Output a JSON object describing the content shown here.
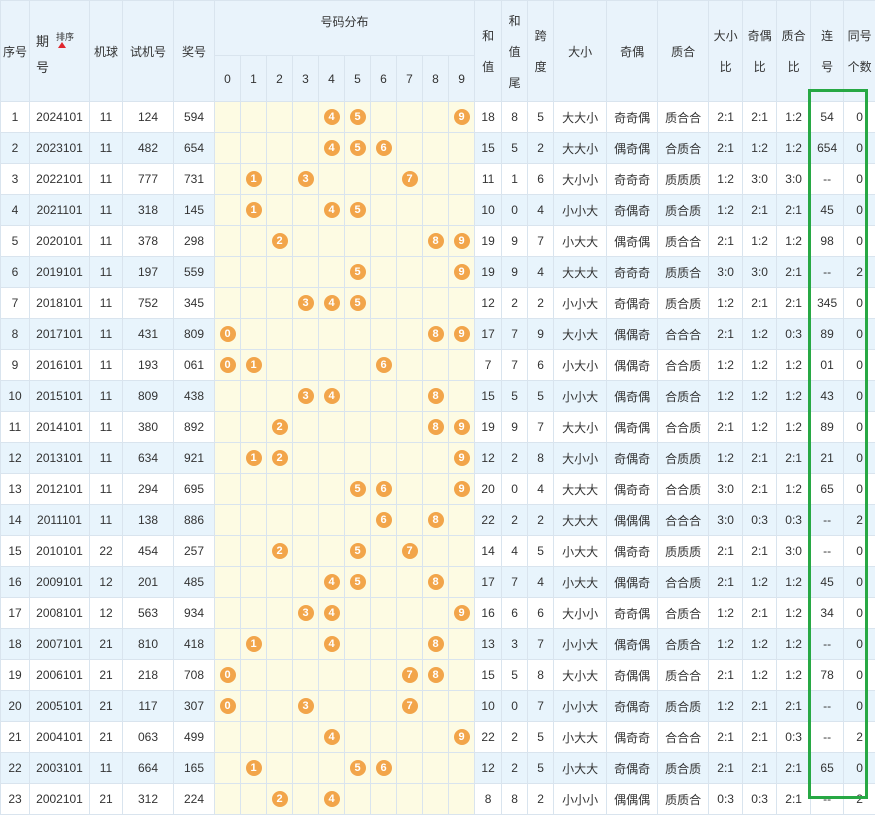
{
  "header": {
    "seq": "序号",
    "period_a": "期",
    "period_b": "号",
    "sort": "排序",
    "machine": "机球",
    "test": "试机号",
    "prize": "奖号",
    "dist": "号码分布",
    "sum_a": "和",
    "sum_b": "值",
    "sumtail_a": "和",
    "sumtail_b": "值",
    "sumtail_c": "尾",
    "span_a": "跨",
    "span_b": "度",
    "bigsmall": "大小",
    "oddeven": "奇偶",
    "primecomp": "质合",
    "bsratio_a": "大小",
    "bsratio_b": "比",
    "oeratio_a": "奇偶",
    "oeratio_b": "比",
    "pcratio_a": "质合",
    "pcratio_b": "比",
    "consec_a": "连",
    "consec_b": "号",
    "same_a": "同号",
    "same_b": "个数",
    "digits": [
      "0",
      "1",
      "2",
      "3",
      "4",
      "5",
      "6",
      "7",
      "8",
      "9"
    ]
  },
  "rows": [
    {
      "seq": "1",
      "period": "2024101",
      "machine": "11",
      "test": "124",
      "prize": "594",
      "balls": [
        "4",
        "5",
        "9"
      ],
      "sum": "18",
      "tail": "8",
      "span": "5",
      "bs": "大大小",
      "oe": "奇奇偶",
      "pc": "质合合",
      "bsr": "2:1",
      "oer": "2:1",
      "pcr": "1:2",
      "consec": "54",
      "same": "0"
    },
    {
      "seq": "2",
      "period": "2023101",
      "machine": "11",
      "test": "482",
      "prize": "654",
      "balls": [
        "4",
        "5",
        "6"
      ],
      "sum": "15",
      "tail": "5",
      "span": "2",
      "bs": "大大小",
      "oe": "偶奇偶",
      "pc": "合质合",
      "bsr": "2:1",
      "oer": "1:2",
      "pcr": "1:2",
      "consec": "654",
      "same": "0"
    },
    {
      "seq": "3",
      "period": "2022101",
      "machine": "11",
      "test": "777",
      "prize": "731",
      "balls": [
        "1",
        "3",
        "7"
      ],
      "sum": "11",
      "tail": "1",
      "span": "6",
      "bs": "大小小",
      "oe": "奇奇奇",
      "pc": "质质质",
      "bsr": "1:2",
      "oer": "3:0",
      "pcr": "3:0",
      "consec": "--",
      "same": "0"
    },
    {
      "seq": "4",
      "period": "2021101",
      "machine": "11",
      "test": "318",
      "prize": "145",
      "balls": [
        "1",
        "4",
        "5"
      ],
      "sum": "10",
      "tail": "0",
      "span": "4",
      "bs": "小小大",
      "oe": "奇偶奇",
      "pc": "质合质",
      "bsr": "1:2",
      "oer": "2:1",
      "pcr": "2:1",
      "consec": "45",
      "same": "0"
    },
    {
      "seq": "5",
      "period": "2020101",
      "machine": "11",
      "test": "378",
      "prize": "298",
      "balls": [
        "2",
        "8",
        "9"
      ],
      "sum": "19",
      "tail": "9",
      "span": "7",
      "bs": "小大大",
      "oe": "偶奇偶",
      "pc": "质合合",
      "bsr": "2:1",
      "oer": "1:2",
      "pcr": "1:2",
      "consec": "98",
      "same": "0"
    },
    {
      "seq": "6",
      "period": "2019101",
      "machine": "11",
      "test": "197",
      "prize": "559",
      "balls": [
        "5",
        "9"
      ],
      "sum": "19",
      "tail": "9",
      "span": "4",
      "bs": "大大大",
      "oe": "奇奇奇",
      "pc": "质质合",
      "bsr": "3:0",
      "oer": "3:0",
      "pcr": "2:1",
      "consec": "--",
      "same": "2"
    },
    {
      "seq": "7",
      "period": "2018101",
      "machine": "11",
      "test": "752",
      "prize": "345",
      "balls": [
        "3",
        "4",
        "5"
      ],
      "sum": "12",
      "tail": "2",
      "span": "2",
      "bs": "小小大",
      "oe": "奇偶奇",
      "pc": "质合质",
      "bsr": "1:2",
      "oer": "2:1",
      "pcr": "2:1",
      "consec": "345",
      "same": "0"
    },
    {
      "seq": "8",
      "period": "2017101",
      "machine": "11",
      "test": "431",
      "prize": "809",
      "balls": [
        "0",
        "8",
        "9"
      ],
      "sum": "17",
      "tail": "7",
      "span": "9",
      "bs": "大小大",
      "oe": "偶偶奇",
      "pc": "合合合",
      "bsr": "2:1",
      "oer": "1:2",
      "pcr": "0:3",
      "consec": "89",
      "same": "0"
    },
    {
      "seq": "9",
      "period": "2016101",
      "machine": "11",
      "test": "193",
      "prize": "061",
      "balls": [
        "0",
        "1",
        "6"
      ],
      "sum": "7",
      "tail": "7",
      "span": "6",
      "bs": "小大小",
      "oe": "偶偶奇",
      "pc": "合合质",
      "bsr": "1:2",
      "oer": "1:2",
      "pcr": "1:2",
      "consec": "01",
      "same": "0"
    },
    {
      "seq": "10",
      "period": "2015101",
      "machine": "11",
      "test": "809",
      "prize": "438",
      "balls": [
        "3",
        "4",
        "8"
      ],
      "sum": "15",
      "tail": "5",
      "span": "5",
      "bs": "小小大",
      "oe": "偶奇偶",
      "pc": "合质合",
      "bsr": "1:2",
      "oer": "1:2",
      "pcr": "1:2",
      "consec": "43",
      "same": "0"
    },
    {
      "seq": "11",
      "period": "2014101",
      "machine": "11",
      "test": "380",
      "prize": "892",
      "balls": [
        "2",
        "8",
        "9"
      ],
      "sum": "19",
      "tail": "9",
      "span": "7",
      "bs": "大大小",
      "oe": "偶奇偶",
      "pc": "合合质",
      "bsr": "2:1",
      "oer": "1:2",
      "pcr": "1:2",
      "consec": "89",
      "same": "0"
    },
    {
      "seq": "12",
      "period": "2013101",
      "machine": "11",
      "test": "634",
      "prize": "921",
      "balls": [
        "1",
        "2",
        "9"
      ],
      "sum": "12",
      "tail": "2",
      "span": "8",
      "bs": "大小小",
      "oe": "奇偶奇",
      "pc": "合质质",
      "bsr": "1:2",
      "oer": "2:1",
      "pcr": "2:1",
      "consec": "21",
      "same": "0"
    },
    {
      "seq": "13",
      "period": "2012101",
      "machine": "11",
      "test": "294",
      "prize": "695",
      "balls": [
        "5",
        "6",
        "9"
      ],
      "sum": "20",
      "tail": "0",
      "span": "4",
      "bs": "大大大",
      "oe": "偶奇奇",
      "pc": "合合质",
      "bsr": "3:0",
      "oer": "2:1",
      "pcr": "1:2",
      "consec": "65",
      "same": "0"
    },
    {
      "seq": "14",
      "period": "2011101",
      "machine": "11",
      "test": "138",
      "prize": "886",
      "balls": [
        "6",
        "8"
      ],
      "sum": "22",
      "tail": "2",
      "span": "2",
      "bs": "大大大",
      "oe": "偶偶偶",
      "pc": "合合合",
      "bsr": "3:0",
      "oer": "0:3",
      "pcr": "0:3",
      "consec": "--",
      "same": "2"
    },
    {
      "seq": "15",
      "period": "2010101",
      "machine": "22",
      "test": "454",
      "prize": "257",
      "balls": [
        "2",
        "5",
        "7"
      ],
      "sum": "14",
      "tail": "4",
      "span": "5",
      "bs": "小大大",
      "oe": "偶奇奇",
      "pc": "质质质",
      "bsr": "2:1",
      "oer": "2:1",
      "pcr": "3:0",
      "consec": "--",
      "same": "0"
    },
    {
      "seq": "16",
      "period": "2009101",
      "machine": "12",
      "test": "201",
      "prize": "485",
      "balls": [
        "4",
        "5",
        "8"
      ],
      "sum": "17",
      "tail": "7",
      "span": "4",
      "bs": "小大大",
      "oe": "偶偶奇",
      "pc": "合合质",
      "bsr": "2:1",
      "oer": "1:2",
      "pcr": "1:2",
      "consec": "45",
      "same": "0"
    },
    {
      "seq": "17",
      "period": "2008101",
      "machine": "12",
      "test": "563",
      "prize": "934",
      "balls": [
        "3",
        "4",
        "9"
      ],
      "sum": "16",
      "tail": "6",
      "span": "6",
      "bs": "大小小",
      "oe": "奇奇偶",
      "pc": "合质合",
      "bsr": "1:2",
      "oer": "2:1",
      "pcr": "1:2",
      "consec": "34",
      "same": "0"
    },
    {
      "seq": "18",
      "period": "2007101",
      "machine": "21",
      "test": "810",
      "prize": "418",
      "balls": [
        "1",
        "4",
        "8"
      ],
      "sum": "13",
      "tail": "3",
      "span": "7",
      "bs": "小小大",
      "oe": "偶奇偶",
      "pc": "合质合",
      "bsr": "1:2",
      "oer": "1:2",
      "pcr": "1:2",
      "consec": "--",
      "same": "0"
    },
    {
      "seq": "19",
      "period": "2006101",
      "machine": "21",
      "test": "218",
      "prize": "708",
      "balls": [
        "0",
        "7",
        "8"
      ],
      "sum": "15",
      "tail": "5",
      "span": "8",
      "bs": "大小大",
      "oe": "奇偶偶",
      "pc": "质合合",
      "bsr": "2:1",
      "oer": "1:2",
      "pcr": "1:2",
      "consec": "78",
      "same": "0"
    },
    {
      "seq": "20",
      "period": "2005101",
      "machine": "21",
      "test": "117",
      "prize": "307",
      "balls": [
        "0",
        "3",
        "7"
      ],
      "sum": "10",
      "tail": "0",
      "span": "7",
      "bs": "小小大",
      "oe": "奇偶奇",
      "pc": "质合质",
      "bsr": "1:2",
      "oer": "2:1",
      "pcr": "2:1",
      "consec": "--",
      "same": "0"
    },
    {
      "seq": "21",
      "period": "2004101",
      "machine": "21",
      "test": "063",
      "prize": "499",
      "balls": [
        "4",
        "9"
      ],
      "sum": "22",
      "tail": "2",
      "span": "5",
      "bs": "小大大",
      "oe": "偶奇奇",
      "pc": "合合合",
      "bsr": "2:1",
      "oer": "2:1",
      "pcr": "0:3",
      "consec": "--",
      "same": "2"
    },
    {
      "seq": "22",
      "period": "2003101",
      "machine": "11",
      "test": "664",
      "prize": "165",
      "balls": [
        "1",
        "5",
        "6"
      ],
      "sum": "12",
      "tail": "2",
      "span": "5",
      "bs": "小大大",
      "oe": "奇偶奇",
      "pc": "质合质",
      "bsr": "2:1",
      "oer": "2:1",
      "pcr": "2:1",
      "consec": "65",
      "same": "0"
    },
    {
      "seq": "23",
      "period": "2002101",
      "machine": "21",
      "test": "312",
      "prize": "224",
      "balls": [
        "2",
        "4"
      ],
      "sum": "8",
      "tail": "8",
      "span": "2",
      "bs": "小小小",
      "oe": "偶偶偶",
      "pc": "质质合",
      "bsr": "0:3",
      "oer": "0:3",
      "pcr": "2:1",
      "consec": "--",
      "same": "2"
    }
  ]
}
